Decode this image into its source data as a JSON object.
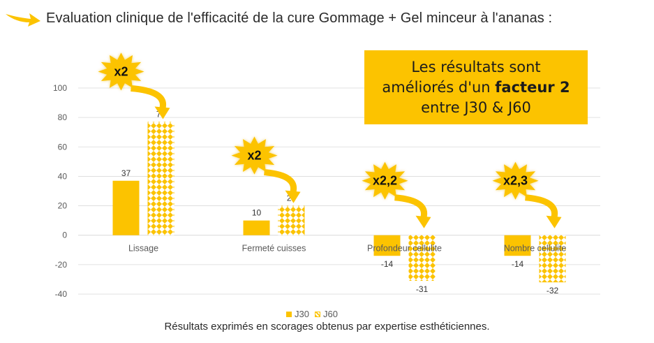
{
  "header": {
    "title": "Evaluation clinique de l'efficacité de la cure Gommage + Gel minceur à l'ananas :"
  },
  "callout": {
    "line1": "Les résultats sont",
    "line2_pre": "améliorés d'un ",
    "line2_bold": "facteur 2",
    "line3": "entre J30 & J60"
  },
  "colors": {
    "accent": "#fcc300",
    "text": "#2a2a2a",
    "axis": "#595959",
    "grid": "#d9d9d9"
  },
  "chart_data": {
    "type": "bar",
    "categories": [
      "Lissage",
      "Fermeté cuisses",
      "Profondeur cellulite",
      "Nombre cellulite"
    ],
    "series": [
      {
        "name": "J30",
        "values": [
          37,
          10,
          -14,
          -14
        ]
      },
      {
        "name": "J60",
        "values": [
          77,
          20,
          -31,
          -32
        ]
      }
    ],
    "ylim": [
      -40,
      100
    ],
    "yticks": [
      100,
      80,
      60,
      40,
      20,
      0,
      -20,
      -40
    ],
    "grid": true,
    "legend": "bottom",
    "annotations": [
      "x2",
      "x2",
      "x2,2",
      "x2,3"
    ]
  },
  "footnote": "Résultats exprimés en scorages obtenus par expertise esthéticiennes."
}
